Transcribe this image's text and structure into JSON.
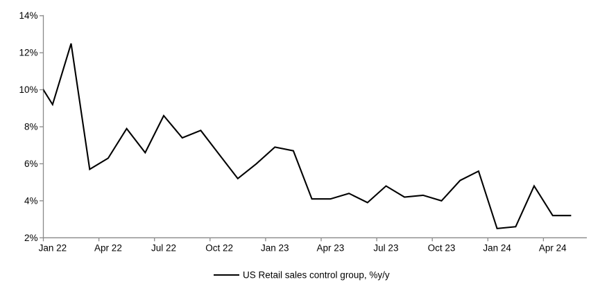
{
  "chart_data": {
    "type": "line",
    "title": "",
    "xlabel": "",
    "ylabel": "",
    "ylim": [
      2,
      14
    ],
    "y_tick_values": [
      14,
      12,
      10,
      8,
      6,
      4,
      2
    ],
    "y_tick_suffix": "%",
    "x_tick_labels": [
      "Jan 22",
      "Apr 22",
      "Jul 22",
      "Oct 22",
      "Jan 23",
      "Apr 23",
      "Jul 23",
      "Oct 23",
      "Jan 24",
      "Apr 24"
    ],
    "x_tick_month_indices": [
      1,
      4,
      7,
      10,
      13,
      16,
      19,
      22,
      25,
      28
    ],
    "legend_label": "US Retail sales control group, %y/y",
    "legend_position": "bottom-center",
    "grid": false,
    "line_color": "#000000",
    "axis_color": "#898989",
    "series": [
      {
        "name": "US Retail sales control group, %y/y",
        "x": [
          "Dec 21",
          "Jan 22",
          "Feb 22",
          "Mar 22",
          "Apr 22",
          "May 22",
          "Jun 22",
          "Jul 22",
          "Aug 22",
          "Sep 22",
          "Oct 22",
          "Nov 22",
          "Dec 22",
          "Jan 23",
          "Feb 23",
          "Mar 23",
          "Apr 23",
          "May 23",
          "Jun 23",
          "Jul 23",
          "Aug 23",
          "Sep 23",
          "Oct 23",
          "Nov 23",
          "Dec 23",
          "Jan 24",
          "Feb 24",
          "Mar 24",
          "Apr 24",
          "May 24"
        ],
        "values": [
          10.8,
          9.2,
          12.5,
          5.7,
          6.3,
          7.9,
          6.6,
          8.6,
          7.4,
          7.8,
          6.5,
          5.2,
          6.0,
          6.9,
          6.7,
          4.1,
          4.1,
          4.4,
          3.9,
          4.8,
          4.2,
          4.3,
          4.0,
          5.1,
          5.6,
          2.5,
          2.6,
          4.8,
          3.2,
          3.2
        ]
      }
    ],
    "notes": "First point (Dec 21) lies left of the plot area and the line is clipped at the y-axis"
  }
}
